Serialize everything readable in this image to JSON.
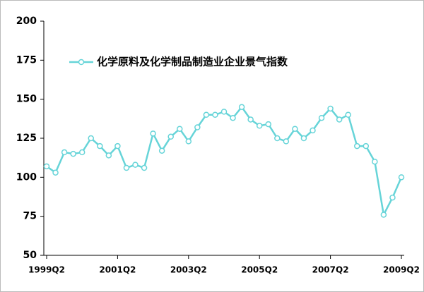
{
  "chart_data": {
    "type": "line",
    "categories": [
      "1999Q2",
      null,
      null,
      null,
      null,
      null,
      null,
      null,
      "2001Q2",
      null,
      null,
      null,
      null,
      null,
      null,
      null,
      "2003Q2",
      null,
      null,
      null,
      null,
      null,
      null,
      null,
      "2005Q2",
      null,
      null,
      null,
      null,
      null,
      null,
      null,
      "2007Q2",
      null,
      null,
      null,
      null,
      null,
      null,
      null,
      "2009Q2"
    ],
    "series": [
      {
        "name": "化学原料及化学制品制造业企业景气指数",
        "color": "#66d4d8",
        "values": [
          107,
          103,
          116,
          115,
          116,
          125,
          120,
          114,
          120,
          106,
          108,
          106,
          128,
          117,
          126,
          131,
          123,
          132,
          140,
          140,
          142,
          138,
          145,
          137,
          133,
          134,
          125,
          123,
          131,
          125,
          130,
          138,
          144,
          137,
          140,
          120,
          120,
          110,
          76,
          87,
          100
        ]
      }
    ],
    "ylim": [
      50,
      200
    ],
    "yticks": [
      50,
      75,
      100,
      125,
      150,
      175,
      200
    ],
    "grid": false,
    "legend": "upper-left"
  }
}
